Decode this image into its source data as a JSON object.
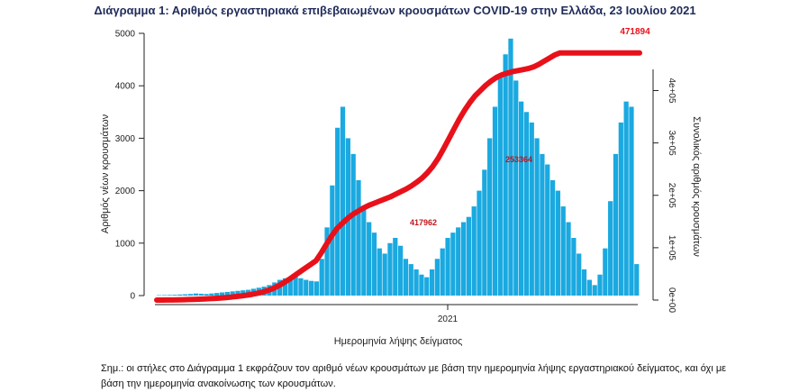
{
  "title": "Διάγραμμα 1: Αριθμός εργαστηριακά επιβεβαιωμένων κρουσμάτων COVID-19 στην Ελλάδα, 23 Ιουλίου 2021",
  "note": "Σημ.: οι στήλες στο Διάγραμμα 1 εκφράζουν τον αριθμό νέων κρουσμάτων με βάση την ημερομηνία λήψης εργαστηριακού δείγματος, και όχι με βάση την ημερομηνία ανακοίνωσης των κρουσμάτων.",
  "colors": {
    "bars": "#1aa9e0",
    "cumulative": "#e8111a",
    "axis": "#222222"
  },
  "chart_data": {
    "type": "bar",
    "xlabel": "Ημερομηνία λήψης δείγματος",
    "ylabel": "Αριθμός νέων κρουσμάτων",
    "y2label": "Συνολικός αριθμός κρουσμάτων",
    "ylim": [
      0,
      5000
    ],
    "yticks": [
      "0",
      "1000",
      "2000",
      "3000",
      "4000",
      "5000"
    ],
    "y2lim": [
      0,
      480000
    ],
    "y2ticks": [
      "0e+00",
      "1e+05",
      "2e+05",
      "3e+05",
      "4e+05"
    ],
    "x_tick_labels": [
      "2021"
    ],
    "grid": false,
    "series": [
      {
        "kind": "bar",
        "description_points": "daily new cases, weekly resolution (approx.)",
        "values": [
          8,
          10,
          12,
          15,
          20,
          25,
          30,
          40,
          35,
          30,
          40,
          50,
          60,
          70,
          80,
          90,
          100,
          110,
          130,
          150,
          170,
          200,
          250,
          300,
          330,
          350,
          360,
          330,
          300,
          280,
          270,
          700,
          1300,
          2100,
          3200,
          3600,
          3000,
          2700,
          2200,
          1700,
          1400,
          1200,
          900,
          800,
          1000,
          1100,
          950,
          700,
          600,
          500,
          400,
          350,
          500,
          700,
          900,
          1100,
          1200,
          1300,
          1400,
          1500,
          1700,
          2000,
          2400,
          3000,
          3600,
          4200,
          4600,
          4900,
          4100,
          3700,
          3500,
          3300,
          3000,
          2700,
          2500,
          2200,
          2000,
          1700,
          1400,
          1100,
          800,
          500,
          300,
          200,
          400,
          900,
          1800,
          2700,
          3300,
          3700,
          3600,
          600
        ]
      },
      {
        "kind": "line",
        "axis": "secondary",
        "values": [
          0,
          50,
          100,
          200,
          400,
          700,
          1000,
          1400,
          1800,
          2200,
          2700,
          3300,
          4000,
          4800,
          5700,
          6800,
          8000,
          9500,
          11000,
          13000,
          15500,
          18500,
          22500,
          27500,
          33500,
          40000,
          47000,
          54000,
          61000,
          68000,
          75000,
          90000,
          107000,
          123000,
          137000,
          147000,
          156000,
          164000,
          170000,
          176000,
          181000,
          185000,
          189000,
          193000,
          197000,
          202000,
          207000,
          212000,
          218000,
          225000,
          233000,
          243000,
          255000,
          270000,
          288000,
          307000,
          326000,
          345000,
          362000,
          377000,
          390000,
          400000,
          410000,
          418000,
          425000,
          430000,
          433000,
          436000,
          438000,
          440000,
          442000,
          445000,
          450000,
          456000,
          462000,
          468000,
          471894,
          471894,
          471894,
          471894,
          471894,
          471894,
          471894,
          471894,
          471894,
          471894,
          471894,
          471894,
          471894,
          471894,
          471894,
          471894
        ]
      }
    ],
    "annotations": [
      "471894",
      "417962",
      "253364"
    ]
  }
}
